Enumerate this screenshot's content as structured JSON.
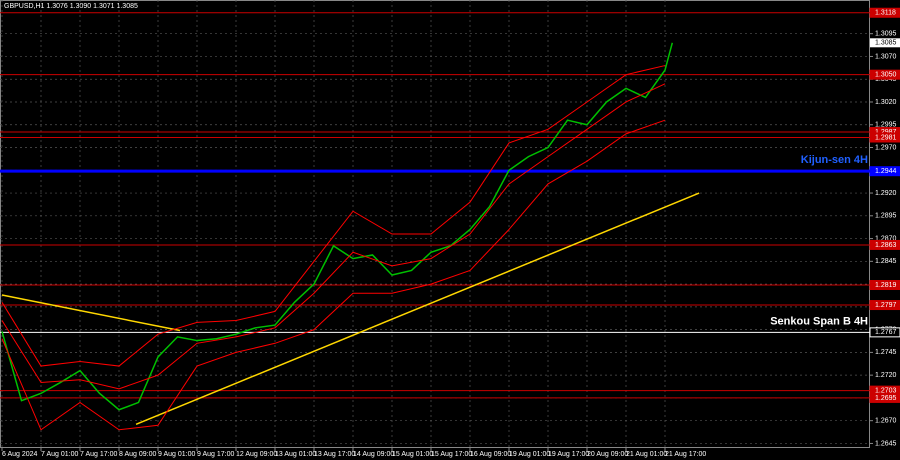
{
  "chart_data": {
    "type": "line",
    "header": "GBPUSD,H1  1.3076 1.3090 1.3071 1.3085",
    "xlim": [
      0,
      357
    ],
    "xticks": [
      {
        "value": 0,
        "label": "6 Aug 2024"
      },
      {
        "value": 16,
        "label": "7 Aug 01:00"
      },
      {
        "value": 32,
        "label": "7 Aug 17:00"
      },
      {
        "value": 48,
        "label": "8 Aug 09:00"
      },
      {
        "value": 64,
        "label": "9 Aug 01:00"
      },
      {
        "value": 80,
        "label": "9 Aug 17:00"
      },
      {
        "value": 96,
        "label": "12 Aug 09:00"
      },
      {
        "value": 112,
        "label": "13 Aug 01:00"
      },
      {
        "value": 128,
        "label": "13 Aug 17:00"
      },
      {
        "value": 144,
        "label": "14 Aug 09:00"
      },
      {
        "value": 160,
        "label": "15 Aug 01:00"
      },
      {
        "value": 176,
        "label": "15 Aug 17:00"
      },
      {
        "value": 192,
        "label": "16 Aug 09:00"
      },
      {
        "value": 208,
        "label": "19 Aug 01:00"
      },
      {
        "value": 224,
        "label": "19 Aug 17:00"
      },
      {
        "value": 240,
        "label": "20 Aug 09:00"
      },
      {
        "value": 256,
        "label": "21 Aug 01:00"
      },
      {
        "value": 272,
        "label": "21 Aug 17:00"
      }
    ],
    "ylim": [
      1.264,
      1.3132
    ],
    "yticks": [
      1.2645,
      {
        "value": 1.267,
        "label": "1.2670"
      },
      1.2695,
      {
        "value": 1.272,
        "label": "1.2720"
      },
      1.2745,
      {
        "value": 1.277,
        "label": "1.2770"
      },
      1.2795,
      {
        "value": 1.282,
        "label": "1.2820"
      },
      1.2845,
      {
        "value": 1.287,
        "label": "1.2870"
      },
      1.2895,
      {
        "value": 1.292,
        "label": "1.2920"
      },
      1.2945,
      {
        "value": 1.297,
        "label": "1.2970"
      },
      1.2995,
      {
        "value": 1.302,
        "label": "1.3020"
      },
      1.3045,
      {
        "value": 1.307,
        "label": "1.3070"
      },
      1.3095
    ],
    "grid": true,
    "series": [
      {
        "color": "#00c000",
        "x": [
          0,
          8,
          16,
          24,
          32,
          40,
          48,
          56,
          64,
          72,
          80,
          88,
          96,
          104,
          112,
          120,
          128,
          136,
          144,
          152,
          160,
          168,
          176,
          184,
          192,
          200,
          208,
          216,
          224,
          232,
          240,
          248,
          256,
          264,
          272,
          275
        ],
        "values": [
          1.2768,
          1.2692,
          1.27,
          1.2712,
          1.2725,
          1.27,
          1.2682,
          1.269,
          1.274,
          1.2762,
          1.2758,
          1.276,
          1.2765,
          1.2772,
          1.2775,
          1.28,
          1.282,
          1.2862,
          1.2848,
          1.2852,
          1.283,
          1.2835,
          1.2855,
          1.2862,
          1.288,
          1.2905,
          1.2945,
          1.296,
          1.297,
          1.3,
          1.2995,
          1.302,
          1.3035,
          1.3025,
          1.3055,
          1.3085
        ]
      },
      {
        "color": "#ff0000",
        "x": [
          0,
          16,
          32,
          48,
          64,
          80,
          96,
          112,
          128,
          144,
          160,
          176,
          192,
          208,
          224,
          240,
          256,
          272
        ],
        "values": [
          1.28,
          1.273,
          1.2735,
          1.273,
          1.2765,
          1.2778,
          1.278,
          1.279,
          1.2845,
          1.29,
          1.2875,
          1.2875,
          1.291,
          1.2975,
          1.299,
          1.302,
          1.305,
          1.306
        ]
      },
      {
        "color": "#ff0000",
        "x": [
          0,
          16,
          32,
          48,
          64,
          80,
          96,
          112,
          128,
          144,
          160,
          176,
          192,
          208,
          224,
          240,
          256,
          272
        ],
        "values": [
          1.278,
          1.2712,
          1.2715,
          1.2705,
          1.272,
          1.2755,
          1.2762,
          1.2772,
          1.281,
          1.2855,
          1.284,
          1.2848,
          1.2875,
          1.293,
          1.296,
          1.299,
          1.302,
          1.304
        ]
      },
      {
        "color": "#ff0000",
        "x": [
          0,
          16,
          32,
          48,
          64,
          80,
          96,
          112,
          128,
          144,
          160,
          176,
          192,
          208,
          224,
          240,
          256,
          272
        ],
        "values": [
          1.276,
          1.266,
          1.269,
          1.266,
          1.2665,
          1.273,
          1.2745,
          1.2755,
          1.277,
          1.281,
          1.281,
          1.282,
          1.2835,
          1.288,
          1.293,
          1.2955,
          1.2985,
          1.3
        ]
      }
    ],
    "trendlines": [
      {
        "color": "#ffd700",
        "x": [
          0,
          73
        ],
        "values": [
          1.2808,
          1.2769
        ]
      },
      {
        "color": "#ffd700",
        "x": [
          55,
          286
        ],
        "values": [
          1.2666,
          1.292
        ]
      }
    ],
    "levels": [
      {
        "value": 1.3118,
        "color": "#cc0000"
      },
      {
        "value": 1.305,
        "label": "1.3050",
        "color": "#cc0000"
      },
      {
        "value": 1.2987,
        "color": "#cc0000"
      },
      {
        "value": 1.2981,
        "color": "#cc0000"
      },
      {
        "value": 1.2944,
        "color": "#0000ff",
        "name": "Kijun-sen 4H"
      },
      {
        "value": 1.2863,
        "color": "#cc0000"
      },
      {
        "value": 1.2819,
        "color": "#cc0000"
      },
      {
        "value": 1.2797,
        "color": "#cc0000"
      },
      {
        "value": 1.2767,
        "color": "#ffffff",
        "name": "Senkou Span B 4H"
      },
      {
        "value": 1.2703,
        "color": "#cc0000"
      },
      {
        "value": 1.2695,
        "color": "#cc0000"
      }
    ],
    "last_price": 1.3085
  }
}
